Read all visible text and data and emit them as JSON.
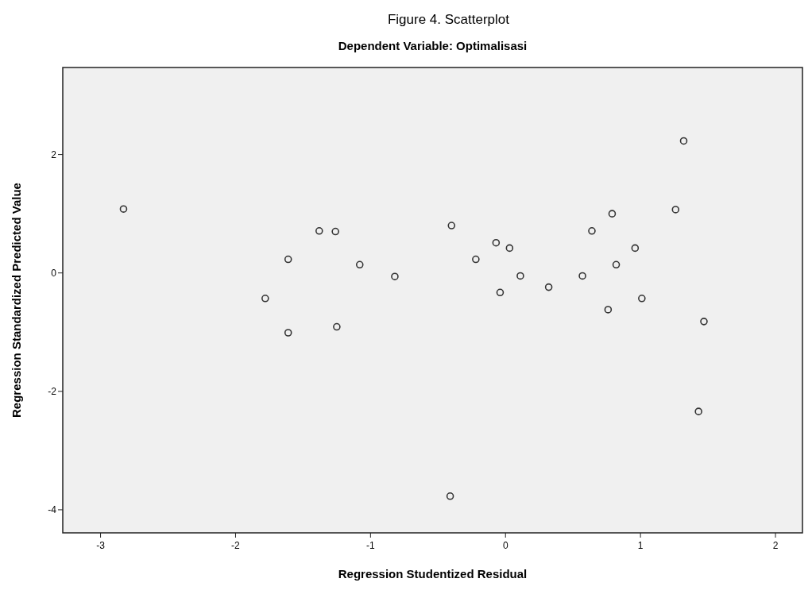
{
  "chart_data": {
    "type": "scatter",
    "title": "Figure 4. Scatterplot",
    "subtitle": "Dependent Variable: Optimalisasi",
    "xlabel": "Regression Studentized Residual",
    "ylabel": "Regression Standardized Predicted Value",
    "xlim": [
      -3.28,
      2.2
    ],
    "ylim": [
      -4.39,
      3.47
    ],
    "xticks": [
      -3,
      -2,
      -1,
      0,
      1,
      2
    ],
    "yticks": [
      -4,
      -2,
      0,
      2
    ],
    "grid": false,
    "marker": "circle",
    "series": [
      {
        "color": "#333333",
        "x": [
          -2.83,
          -1.38,
          -1.26,
          -1.61,
          -1.08,
          -0.82,
          -1.78,
          -1.61,
          -1.25,
          1.32,
          1.26,
          0.79,
          -0.4,
          0.64,
          -0.07,
          0.03,
          0.96,
          -0.22,
          0.82,
          0.11,
          0.57,
          0.32,
          -0.04,
          1.01,
          0.76,
          1.47,
          1.43,
          -0.41
        ],
        "values": [
          1.08,
          0.71,
          0.7,
          0.23,
          0.14,
          -0.06,
          -0.43,
          -1.01,
          -0.91,
          2.23,
          1.07,
          1.0,
          0.8,
          0.71,
          0.51,
          0.42,
          0.42,
          0.23,
          0.14,
          -0.05,
          -0.05,
          -0.24,
          -0.33,
          -0.43,
          -0.62,
          -0.82,
          -2.34,
          -3.77
        ]
      }
    ]
  }
}
